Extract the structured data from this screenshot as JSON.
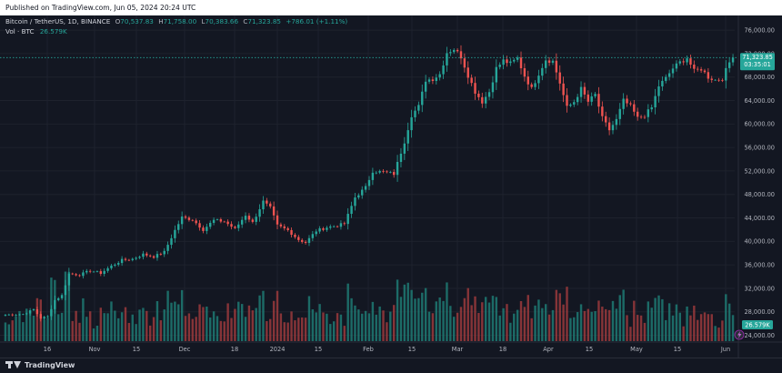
{
  "published_text": "Published on TradingView.com, Jun 05, 2024 20:24 UTC",
  "legend": {
    "symbol": "Bitcoin / TetherUS, 1D, BINANCE",
    "o_label": "O",
    "o_value": "70,537.83",
    "h_label": "H",
    "h_value": "71,758.00",
    "l_label": "L",
    "l_value": "70,383.66",
    "c_label": "C",
    "c_value": "71,323.85",
    "change": "+786.01 (+1.11%)",
    "vol_label": "Vol · BTC",
    "vol_value": "26.579K"
  },
  "price_badge": {
    "value": "71,323.85",
    "countdown": "03:35:01"
  },
  "volume_badge": "26.579K",
  "footer_brand": "TradingView",
  "colors": {
    "up": "#26a69a",
    "down": "#ef5350",
    "vol_up": "#1f7a73",
    "vol_down": "#9b3a3c",
    "background": "#131722",
    "text": "#b2b5be",
    "grid": "#1e222d"
  },
  "chart_data": {
    "type": "candlestick",
    "x_tick_labels": [
      "16",
      "Nov",
      "15",
      "Dec",
      "18",
      "2024",
      "15",
      "Feb",
      "15",
      "Mar",
      "18",
      "Apr",
      "15",
      "May",
      "15",
      "Jun"
    ],
    "y_tick_labels": [
      "24,000.00",
      "28,000.00",
      "32,000.00",
      "36,000.00",
      "40,000.00",
      "44,000.00",
      "48,000.00",
      "52,000.00",
      "56,000.00",
      "60,000.00",
      "64,000.00",
      "68,000.00",
      "72,000.00",
      "76,000.00"
    ],
    "ylim": [
      23000,
      78500
    ],
    "last_price": 71323.85,
    "close_path": [
      [
        0,
        27500
      ],
      [
        5,
        27600
      ],
      [
        8,
        28400
      ],
      [
        10,
        26900
      ],
      [
        12,
        27200
      ],
      [
        14,
        30000
      ],
      [
        16,
        30800
      ],
      [
        18,
        34500
      ],
      [
        21,
        34300
      ],
      [
        24,
        35000
      ],
      [
        27,
        34600
      ],
      [
        30,
        35800
      ],
      [
        33,
        36800
      ],
      [
        36,
        37000
      ],
      [
        39,
        37800
      ],
      [
        42,
        37400
      ],
      [
        45,
        38200
      ],
      [
        48,
        41900
      ],
      [
        50,
        44100
      ],
      [
        53,
        43700
      ],
      [
        56,
        42000
      ],
      [
        59,
        43600
      ],
      [
        62,
        43400
      ],
      [
        65,
        42100
      ],
      [
        68,
        44500
      ],
      [
        70,
        43200
      ],
      [
        73,
        46800
      ],
      [
        75,
        45700
      ],
      [
        77,
        42700
      ],
      [
        80,
        41900
      ],
      [
        83,
        40300
      ],
      [
        85,
        39800
      ],
      [
        88,
        41800
      ],
      [
        91,
        42400
      ],
      [
        94,
        42700
      ],
      [
        96,
        43000
      ],
      [
        99,
        47500
      ],
      [
        102,
        49200
      ],
      [
        104,
        52000
      ],
      [
        107,
        51800
      ],
      [
        110,
        51500
      ],
      [
        113,
        57000
      ],
      [
        115,
        61500
      ],
      [
        117,
        63000
      ],
      [
        119,
        67500
      ],
      [
        121,
        67700
      ],
      [
        123,
        68500
      ],
      [
        125,
        72200
      ],
      [
        127,
        72800
      ],
      [
        129,
        71500
      ],
      [
        131,
        68300
      ],
      [
        133,
        65500
      ],
      [
        135,
        63800
      ],
      [
        137,
        65500
      ],
      [
        139,
        69500
      ],
      [
        141,
        70800
      ],
      [
        143,
        70300
      ],
      [
        145,
        71200
      ],
      [
        147,
        68200
      ],
      [
        149,
        66000
      ],
      [
        151,
        68600
      ],
      [
        153,
        71000
      ],
      [
        155,
        70700
      ],
      [
        157,
        67000
      ],
      [
        159,
        62800
      ],
      [
        161,
        63800
      ],
      [
        163,
        66000
      ],
      [
        165,
        63800
      ],
      [
        167,
        65000
      ],
      [
        169,
        61000
      ],
      [
        171,
        59000
      ],
      [
        173,
        60700
      ],
      [
        175,
        64000
      ],
      [
        177,
        63000
      ],
      [
        179,
        61000
      ],
      [
        181,
        61500
      ],
      [
        183,
        62800
      ],
      [
        185,
        66500
      ],
      [
        187,
        67800
      ],
      [
        189,
        69500
      ],
      [
        191,
        70500
      ],
      [
        193,
        71300
      ],
      [
        195,
        69000
      ],
      [
        197,
        69400
      ],
      [
        199,
        68000
      ],
      [
        201,
        67500
      ],
      [
        203,
        67800
      ],
      [
        205,
        70500
      ],
      [
        206,
        71323.85
      ]
    ]
  }
}
